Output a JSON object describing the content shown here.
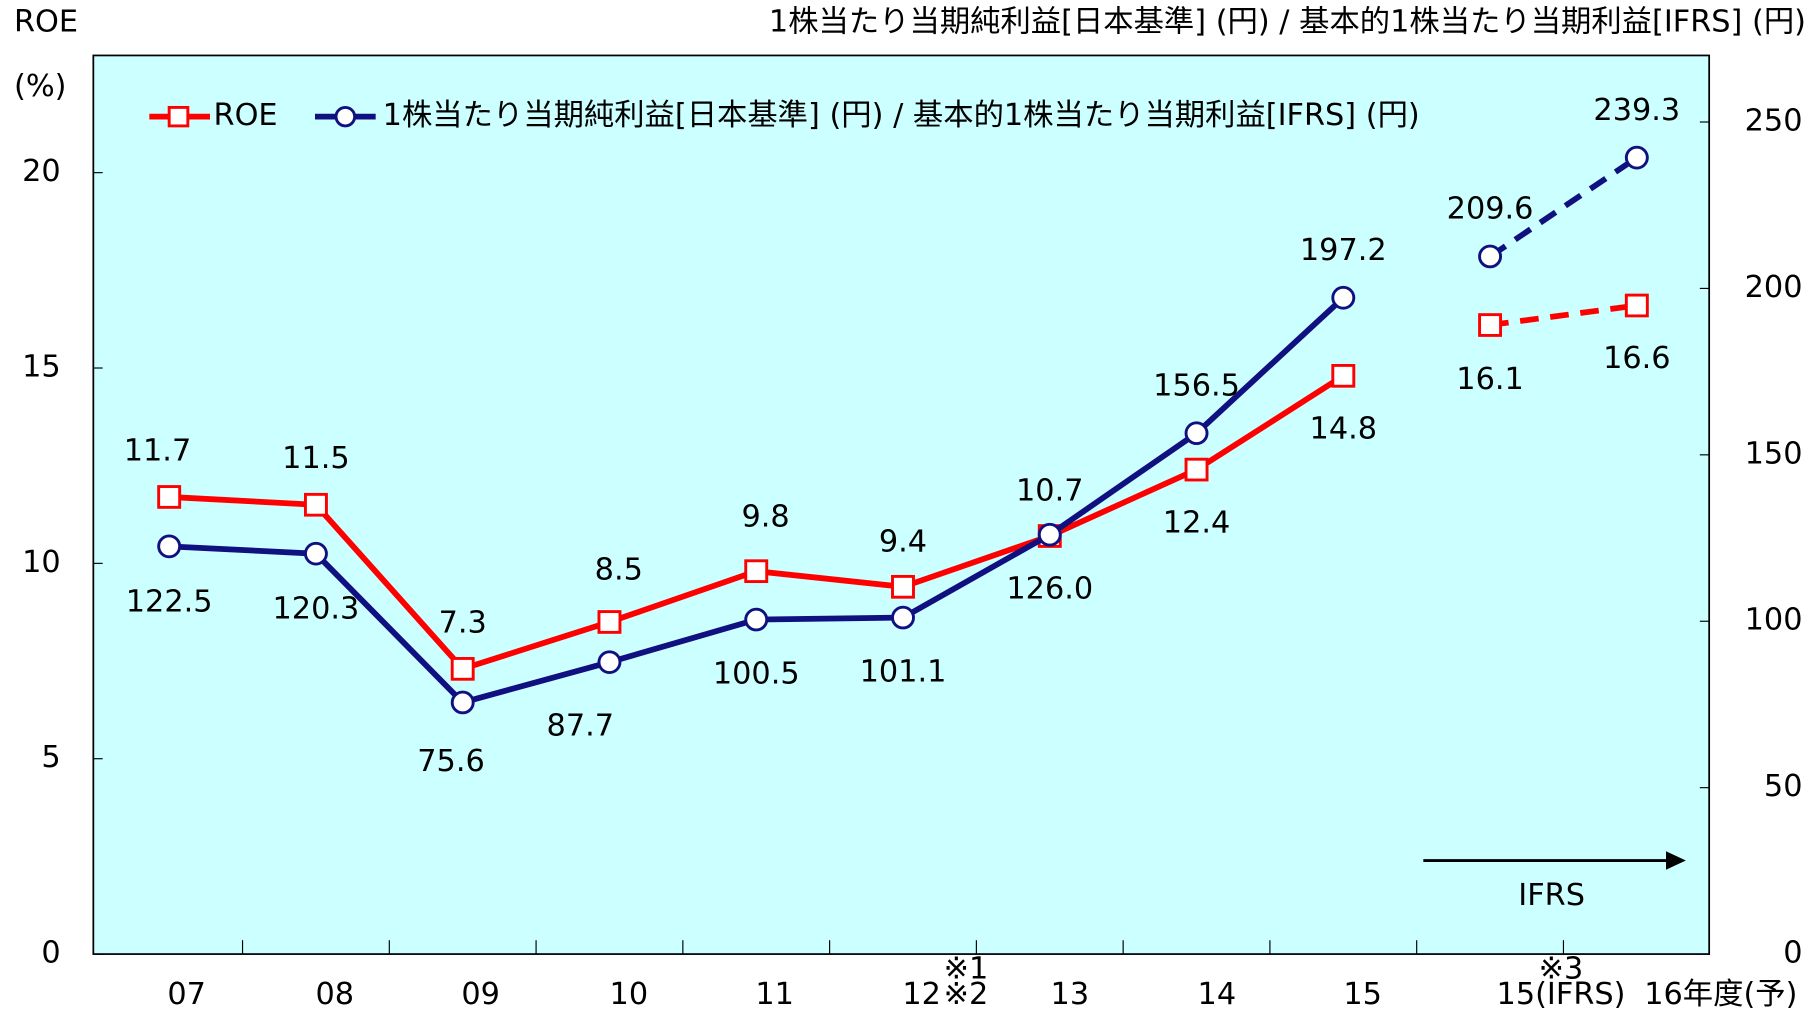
{
  "chart_data": {
    "type": "line",
    "y_label": "ROE",
    "y_unit": "(%)",
    "y2_label": "1株当たり当期純利益[日本基準] (円) / 基本的1株当たり当期利益[IFRS] (円)",
    "categories": [
      "07",
      "08",
      "09",
      "10",
      "11",
      "12",
      "13",
      "14",
      "15",
      "15(IFRS)",
      "16年度(予)"
    ],
    "series": [
      {
        "name": "ROE",
        "color": "#ff0000",
        "marker": "square",
        "dash_from": 9,
        "values": [
          11.7,
          11.5,
          7.3,
          8.5,
          9.8,
          9.4,
          10.7,
          12.4,
          14.8,
          16.1,
          16.6
        ]
      },
      {
        "name": "1株当たり当期純利益[日本基準] (円) / 基本的1株当たり当期利益[IFRS] (円)",
        "color": "#101080",
        "marker": "circle",
        "axis": "y2",
        "dash_from": 9,
        "values": [
          122.5,
          120.3,
          75.6,
          87.7,
          100.5,
          101.1,
          126.0,
          156.5,
          197.2,
          209.6,
          239.3
        ],
        "value_labels": [
          "122.5",
          "120.3",
          "75.6",
          "87.7",
          "100.5",
          "101.1",
          "126.0",
          "156.5",
          "197.2",
          "209.6",
          "239.3"
        ]
      }
    ],
    "ylim": [
      0,
      23
    ],
    "yticks": [
      0,
      5,
      10,
      15,
      20
    ],
    "y2lim": [
      0,
      270
    ],
    "y2ticks": [
      0,
      50,
      100,
      150,
      200,
      250
    ],
    "annotations": [
      "※1",
      "※2",
      "※3",
      "IFRS"
    ],
    "legend": "top-left",
    "background": "#ccffff"
  }
}
